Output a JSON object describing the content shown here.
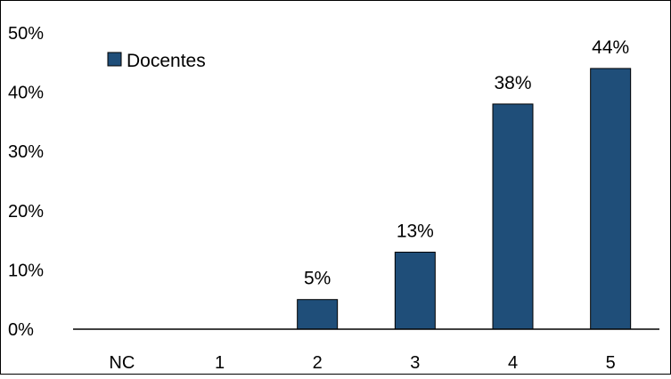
{
  "chart_data": {
    "type": "bar",
    "categories": [
      "NC",
      "1",
      "2",
      "3",
      "4",
      "5"
    ],
    "series": [
      {
        "name": "Docentes",
        "values": [
          0,
          0,
          5,
          13,
          38,
          44
        ],
        "color": "#1f4e79"
      }
    ],
    "data_labels": [
      "",
      "",
      "5%",
      "13%",
      "38%",
      "44%"
    ],
    "yticks": [
      "0%",
      "10%",
      "20%",
      "30%",
      "40%",
      "50%"
    ],
    "ylim": [
      0,
      50
    ],
    "grid": false,
    "legend_position": "top-left",
    "bar_edge_color": "#000000"
  }
}
